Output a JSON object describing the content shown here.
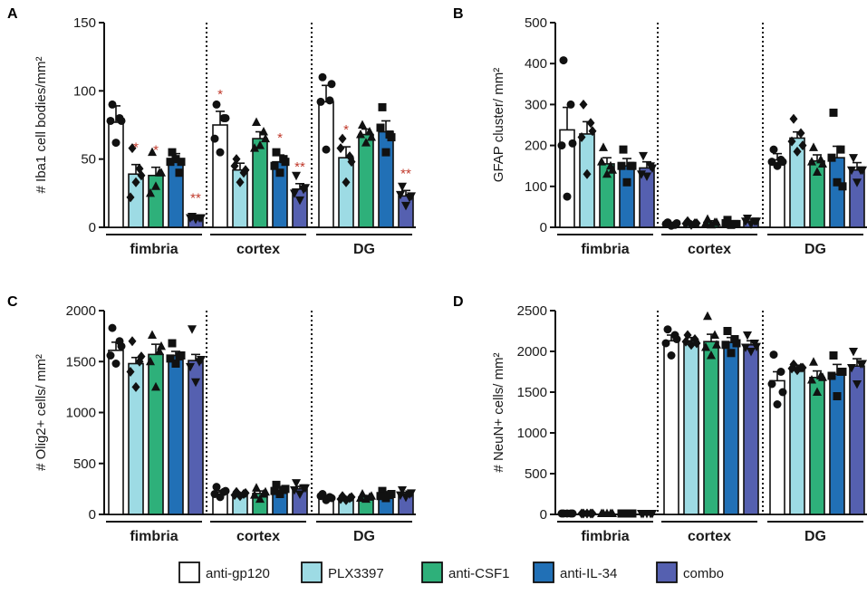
{
  "colors": {
    "series": [
      "#ffffff",
      "#9ddbe4",
      "#2eb07a",
      "#2170b6",
      "#5560b0"
    ],
    "stroke": "#111111",
    "significance": "#c0392b"
  },
  "legend": [
    "anti-gp120",
    "PLX3397",
    "anti-CSF1",
    "anti-IL-34",
    "combo"
  ],
  "chart_data": [
    {
      "panel": "A",
      "type": "bar",
      "ylabel": "# Iba1 cell bodies/mm²",
      "ylim": [
        0,
        150
      ],
      "yticks": [
        0,
        50,
        100,
        150
      ],
      "groups": [
        "fimbria",
        "cortex",
        "DG"
      ],
      "series": [
        {
          "name": "anti-gp120",
          "values": [
            77,
            75,
            92
          ],
          "errors": [
            12,
            10,
            12
          ],
          "marker": "circle",
          "points": [
            [
              90,
              80,
              62,
              78,
              78
            ],
            [
              90,
              80,
              55,
              65,
              80
            ],
            [
              110,
              93,
              57,
              92,
              105
            ]
          ]
        },
        {
          "name": "PLX3397",
          "values": [
            39,
            42,
            51
          ],
          "errors": [
            7,
            5,
            8
          ],
          "marker": "diamond",
          "points": [
            [
              58,
              43,
              33,
              22,
              38
            ],
            [
              50,
              40,
              33,
              45,
              42
            ],
            [
              65,
              52,
              33,
              58,
              48
            ]
          ]
        },
        {
          "name": "anti-CSF1",
          "values": [
            38,
            65,
            68
          ],
          "errors": [
            6,
            5,
            4
          ],
          "marker": "triangle",
          "points": [
            [
              55,
              40,
              30,
              25,
              40
            ],
            [
              77,
              70,
              60,
              58,
              65
            ],
            [
              75,
              70,
              62,
              68,
              66
            ]
          ]
        },
        {
          "name": "anti-IL-34",
          "values": [
            48,
            48,
            70
          ],
          "errors": [
            6,
            5,
            8
          ],
          "marker": "square",
          "points": [
            [
              55,
              40,
              50,
              48,
              48
            ],
            [
              55,
              50,
              40,
              45,
              48
            ],
            [
              88,
              68,
              55,
              73,
              66
            ]
          ]
        },
        {
          "name": "combo",
          "values": [
            7,
            28,
            23
          ],
          "errors": [
            2,
            4,
            4
          ],
          "marker": "invtriangle",
          "points": [
            [
              8,
              7,
              6,
              7,
              7
            ],
            [
              38,
              28,
              20,
              25,
              29
            ],
            [
              30,
              22,
              16,
              24,
              23
            ]
          ]
        }
      ],
      "significance": [
        {
          "group": 0,
          "series": 1,
          "text": "*"
        },
        {
          "group": 0,
          "series": 2,
          "text": "*"
        },
        {
          "group": 0,
          "series": 4,
          "text": "**"
        },
        {
          "group": 1,
          "series": 0,
          "text": "*"
        },
        {
          "group": 1,
          "series": 3,
          "text": "*"
        },
        {
          "group": 1,
          "series": 4,
          "text": "**"
        },
        {
          "group": 2,
          "series": 1,
          "text": "*"
        },
        {
          "group": 2,
          "series": 4,
          "text": "**"
        }
      ]
    },
    {
      "panel": "B",
      "type": "bar",
      "ylabel": "GFAP cluster/ mm²",
      "ylim": [
        0,
        500
      ],
      "yticks": [
        0,
        100,
        200,
        300,
        400,
        500
      ],
      "groups": [
        "fimbria",
        "cortex",
        "DG"
      ],
      "series": [
        {
          "name": "anti-gp120",
          "values": [
            238,
            8,
            165
          ],
          "errors": [
            55,
            4,
            15
          ],
          "marker": "circle",
          "points": [
            [
              408,
              300,
              75,
              200,
              205
            ],
            [
              12,
              6,
              4,
              8,
              10
            ],
            [
              190,
              165,
              150,
              160,
              160
            ]
          ]
        },
        {
          "name": "PLX3397",
          "values": [
            228,
            10,
            218
          ],
          "errors": [
            30,
            3,
            15
          ],
          "marker": "diamond",
          "points": [
            [
              300,
              255,
              130,
              220,
              235
            ],
            [
              15,
              10,
              6,
              9,
              10
            ],
            [
              265,
              230,
              185,
              210,
              200
            ]
          ]
        },
        {
          "name": "anti-CSF1",
          "values": [
            155,
            12,
            162
          ],
          "errors": [
            15,
            4,
            15
          ],
          "marker": "triangle",
          "points": [
            [
              195,
              150,
              130,
              160,
              140
            ],
            [
              20,
              12,
              6,
              10,
              12
            ],
            [
              195,
              165,
              135,
              160,
              155
            ]
          ]
        },
        {
          "name": "anti-IL-34",
          "values": [
            150,
            10,
            170
          ],
          "errors": [
            18,
            3,
            28
          ],
          "marker": "square",
          "points": [
            [
              190,
              150,
              110,
              150,
              150
            ],
            [
              18,
              8,
              6,
              10,
              8
            ],
            [
              280,
              190,
              110,
              170,
              100
            ]
          ]
        },
        {
          "name": "combo",
          "values": [
            145,
            15,
            140
          ],
          "errors": [
            15,
            5,
            18
          ],
          "marker": "invtriangle",
          "points": [
            [
              175,
              150,
              125,
              130,
              145
            ],
            [
              22,
              15,
              8,
              15,
              15
            ],
            [
              170,
              140,
              110,
              140,
              140
            ]
          ]
        }
      ],
      "significance": []
    },
    {
      "panel": "C",
      "type": "bar",
      "ylabel": "# Olig2+ cells/ mm²",
      "ylim": [
        0,
        2000
      ],
      "yticks": [
        0,
        500,
        1000,
        1500,
        2000
      ],
      "groups": [
        "fimbria",
        "cortex",
        "DG"
      ],
      "series": [
        {
          "name": "anti-gp120",
          "values": [
            1610,
            220,
            170
          ],
          "errors": [
            80,
            15,
            15
          ],
          "marker": "circle",
          "points": [
            [
              1830,
              1700,
              1480,
              1560,
              1650
            ],
            [
              270,
              220,
              170,
              200,
              230
            ],
            [
              200,
              170,
              140,
              180,
              160
            ]
          ]
        },
        {
          "name": "PLX3397",
          "values": [
            1480,
            200,
            160
          ],
          "errors": [
            60,
            12,
            10
          ],
          "marker": "diamond",
          "points": [
            [
              1700,
              1500,
              1250,
              1400,
              1550
            ],
            [
              220,
              200,
              180,
              190,
              210
            ],
            [
              180,
              160,
              140,
              150,
              170
            ]
          ]
        },
        {
          "name": "anti-CSF1",
          "values": [
            1570,
            205,
            170
          ],
          "errors": [
            100,
            25,
            15
          ],
          "marker": "triangle",
          "points": [
            [
              1760,
              1600,
              1250,
              1500,
              1650
            ],
            [
              260,
              200,
              150,
              190,
              220
            ],
            [
              200,
              170,
              150,
              160,
              180
            ]
          ]
        },
        {
          "name": "anti-IL-34",
          "values": [
            1560,
            240,
            190
          ],
          "errors": [
            40,
            20,
            20
          ],
          "marker": "square",
          "points": [
            [
              1680,
              1550,
              1480,
              1530,
              1560
            ],
            [
              290,
              240,
              200,
              230,
              250
            ],
            [
              230,
              190,
              160,
              180,
              200
            ]
          ]
        },
        {
          "name": "combo",
          "values": [
            1510,
            250,
            200
          ],
          "errors": [
            60,
            25,
            15
          ],
          "marker": "invtriangle",
          "points": [
            [
              1820,
              1500,
              1300,
              1450,
              1520
            ],
            [
              310,
              260,
              200,
              240,
              260
            ],
            [
              240,
              200,
              170,
              190,
              210
            ]
          ]
        }
      ],
      "significance": []
    },
    {
      "panel": "D",
      "type": "bar",
      "ylabel": "# NeuN+ cells/ mm²",
      "ylim": [
        0,
        2500
      ],
      "yticks": [
        0,
        500,
        1000,
        1500,
        2000,
        2500
      ],
      "groups": [
        "fimbria",
        "cortex",
        "DG"
      ],
      "series": [
        {
          "name": "anti-gp120",
          "values": [
            5,
            2130,
            1640
          ],
          "errors": [
            2,
            70,
            110
          ],
          "marker": "circle",
          "points": [
            [
              10,
              5,
              3,
              4,
              6
            ],
            [
              2270,
              2200,
              1950,
              2100,
              2150
            ],
            [
              1960,
              1750,
              1350,
              1600,
              1500
            ]
          ]
        },
        {
          "name": "PLX3397",
          "values": [
            3,
            2130,
            1800
          ],
          "errors": [
            1,
            40,
            30
          ],
          "marker": "diamond",
          "points": [
            [
              6,
              4,
              2,
              3,
              4
            ],
            [
              2200,
              2150,
              2080,
              2120,
              2100
            ],
            [
              1840,
              1800,
              1770,
              1790,
              1800
            ]
          ]
        },
        {
          "name": "anti-CSF1",
          "values": [
            4,
            2120,
            1680
          ],
          "errors": [
            2,
            90,
            80
          ],
          "marker": "triangle",
          "points": [
            [
              8,
              5,
              2,
              4,
              5
            ],
            [
              2430,
              2200,
              1950,
              2050,
              2080
            ],
            [
              1870,
              1700,
              1500,
              1650,
              1680
            ]
          ]
        },
        {
          "name": "anti-IL-34",
          "values": [
            5,
            2110,
            1720
          ],
          "errors": [
            2,
            60,
            120
          ],
          "marker": "square",
          "points": [
            [
              8,
              5,
              2,
              4,
              6
            ],
            [
              2250,
              2150,
              1980,
              2080,
              2100
            ],
            [
              1950,
              1750,
              1450,
              1700,
              1750
            ]
          ]
        },
        {
          "name": "combo",
          "values": [
            4,
            2080,
            1820
          ],
          "errors": [
            2,
            50,
            90
          ],
          "marker": "invtriangle",
          "points": [
            [
              7,
              5,
              2,
              4,
              5
            ],
            [
              2200,
              2100,
              2000,
              2050,
              2060
            ],
            [
              2000,
              1850,
              1600,
              1800,
              1850
            ]
          ]
        }
      ],
      "significance": []
    }
  ]
}
